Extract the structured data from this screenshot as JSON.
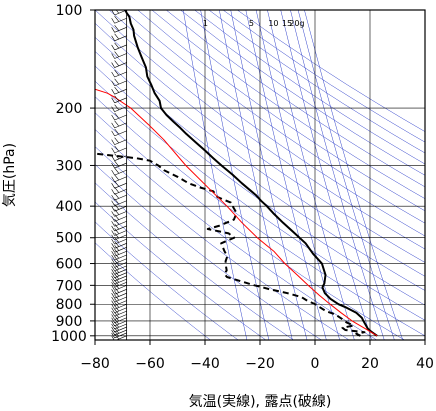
{
  "chart_data": {
    "type": "skew-t",
    "xlabel": "気温(実線), 露点(破線)",
    "ylabel": "気圧(hPa)",
    "xlim": [
      -80,
      40
    ],
    "ylim_hpa": [
      1030,
      100
    ],
    "y_scale": "log",
    "x_ticks": [
      "−80",
      "−60",
      "−40",
      "−20",
      "0",
      "20",
      "40"
    ],
    "x_tick_values": [
      -80,
      -60,
      -40,
      -20,
      0,
      20,
      40
    ],
    "y_ticks": [
      "100",
      "200",
      "300",
      "400",
      "500",
      "600",
      "700",
      "800",
      "900",
      "1000"
    ],
    "y_tick_values": [
      100,
      200,
      300,
      400,
      500,
      600,
      700,
      800,
      900,
      1000
    ],
    "mixing_ratio_labels": [
      "1",
      "5",
      "10",
      "15",
      "20g"
    ],
    "mixing_ratio_values": [
      1,
      5,
      10,
      15,
      20
    ],
    "grid": true,
    "colors": {
      "temperature": "#000000",
      "dewpoint": "#000000",
      "parcel": "#ff0000",
      "background_lines": "#3344cc",
      "grid": "#000000"
    },
    "series": [
      {
        "key": "temperature",
        "style": "solid",
        "points": [
          [
            1000,
            22.6
          ],
          [
            985,
            21.5
          ],
          [
            970,
            20.4
          ],
          [
            950,
            19.2
          ],
          [
            925,
            18.4
          ],
          [
            900,
            17.6
          ],
          [
            880,
            17.0
          ],
          [
            850,
            15.0
          ],
          [
            820,
            11.5
          ],
          [
            800,
            8.5
          ],
          [
            770,
            5.6
          ],
          [
            740,
            3.6
          ],
          [
            710,
            2.7
          ],
          [
            690,
            3.4
          ],
          [
            650,
            3.8
          ],
          [
            600,
            2.5
          ],
          [
            560,
            -0.7
          ],
          [
            520,
            -3.4
          ],
          [
            480,
            -7.9
          ],
          [
            450,
            -11.6
          ],
          [
            420,
            -15.2
          ],
          [
            400,
            -17.5
          ],
          [
            385,
            -19.6
          ],
          [
            370,
            -21.5
          ],
          [
            355,
            -24.0
          ],
          [
            340,
            -26.6
          ],
          [
            320,
            -30.0
          ],
          [
            300,
            -34.0
          ],
          [
            285,
            -37.0
          ],
          [
            270,
            -40.0
          ],
          [
            255,
            -43.3
          ],
          [
            240,
            -46.8
          ],
          [
            230,
            -49.0
          ],
          [
            220,
            -51.5
          ],
          [
            210,
            -54.0
          ],
          [
            200,
            -56.0
          ],
          [
            190,
            -56.5
          ],
          [
            180,
            -58.3
          ],
          [
            170,
            -59.5
          ],
          [
            160,
            -61.0
          ],
          [
            150,
            -61.5
          ],
          [
            140,
            -63.0
          ],
          [
            130,
            -64.5
          ],
          [
            120,
            -65.8
          ],
          [
            115,
            -66.0
          ],
          [
            110,
            -67.0
          ],
          [
            105,
            -67.5
          ],
          [
            102,
            -68.5
          ],
          [
            100,
            -69.0
          ]
        ]
      },
      {
        "key": "dewpoint",
        "style": "dashed",
        "points": [
          [
            1000,
            16.5
          ],
          [
            985,
            15.0
          ],
          [
            975,
            18.0
          ],
          [
            960,
            11.0
          ],
          [
            945,
            10.0
          ],
          [
            930,
            14.0
          ],
          [
            910,
            11.5
          ],
          [
            890,
            10.0
          ],
          [
            860,
            7.4
          ],
          [
            840,
            4.0
          ],
          [
            800,
            0.0
          ],
          [
            780,
            -2.8
          ],
          [
            760,
            -5.0
          ],
          [
            740,
            -10.0
          ],
          [
            720,
            -16.4
          ],
          [
            700,
            -22.0
          ],
          [
            680,
            -27.0
          ],
          [
            660,
            -32.0
          ],
          [
            645,
            -33.0
          ],
          [
            630,
            -32.1
          ],
          [
            610,
            -32.4
          ],
          [
            590,
            -32.5
          ],
          [
            570,
            -31.9
          ],
          [
            550,
            -32.9
          ],
          [
            520,
            -34.1
          ],
          [
            500,
            -29.4
          ],
          [
            485,
            -31.4
          ],
          [
            470,
            -39.0
          ],
          [
            460,
            -35.0
          ],
          [
            440,
            -29.5
          ],
          [
            420,
            -28.5
          ],
          [
            405,
            -29.6
          ],
          [
            390,
            -30.6
          ],
          [
            375,
            -35.5
          ],
          [
            360,
            -37.0
          ],
          [
            350,
            -42.0
          ],
          [
            340,
            -46.0
          ],
          [
            325,
            -50.0
          ],
          [
            310,
            -55.0
          ],
          [
            300,
            -57.0
          ],
          [
            290,
            -60.0
          ],
          [
            285,
            -65.0
          ],
          [
            280,
            -73.0
          ],
          [
            276,
            -80.0
          ]
        ]
      },
      {
        "key": "parcel",
        "style": "solid",
        "points": [
          [
            1000,
            22.6
          ],
          [
            950,
            18.2
          ],
          [
            900,
            13.5
          ],
          [
            850,
            9.5
          ],
          [
            800,
            5.5
          ],
          [
            750,
            1.5
          ],
          [
            700,
            -2.5
          ],
          [
            650,
            -6.5
          ],
          [
            600,
            -11.0
          ],
          [
            550,
            -15.0
          ],
          [
            500,
            -21.0
          ],
          [
            450,
            -26.5
          ],
          [
            400,
            -32.0
          ],
          [
            350,
            -39.0
          ],
          [
            300,
            -47.0
          ],
          [
            250,
            -55.0
          ],
          [
            225,
            -60.5
          ],
          [
            200,
            -67.0
          ],
          [
            185,
            -73.0
          ],
          [
            180,
            -75.5
          ],
          [
            175,
            -80.0
          ]
        ]
      }
    ],
    "wind_barbs": {
      "x_temperature": -68.5,
      "pressures": [
        100,
        106,
        113,
        120,
        128,
        136,
        145,
        155,
        165,
        175,
        186,
        198,
        210,
        222,
        235,
        250,
        265,
        280,
        295,
        310,
        325,
        340,
        355,
        370,
        385,
        400,
        415,
        430,
        445,
        460,
        475,
        490,
        505,
        520,
        535,
        550,
        565,
        580,
        595,
        610,
        625,
        640,
        655,
        670,
        685,
        700,
        720,
        740,
        760,
        780,
        800,
        820,
        840,
        860,
        880,
        900,
        920,
        940,
        960,
        980,
        1000
      ]
    }
  }
}
